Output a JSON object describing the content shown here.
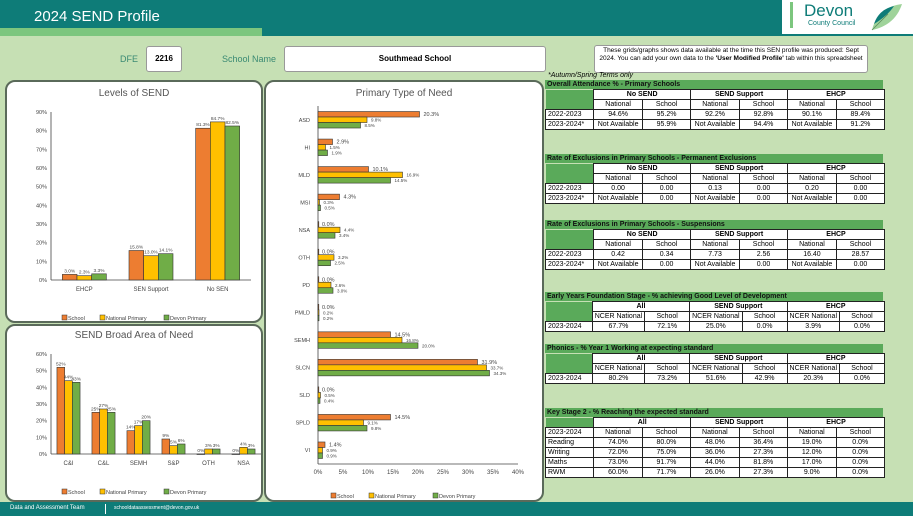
{
  "header": {
    "title": "2024 SEND Profile",
    "logo_main": "Devon",
    "logo_sub": "County Council"
  },
  "form": {
    "dfe_label": "DFE",
    "dfe_value": "2216",
    "school_label": "School Name",
    "school_value": "Southmead School",
    "note_part1": "These grids/graphs shows data available at the time this SEN profile was produced: Sept 2024.  You can add your own data to the ",
    "note_bold": "'User Modified Profile'",
    "note_part2": " tab within this spreadsheet",
    "autumn_note": "*Autumn/Spring Terms only"
  },
  "colors": {
    "school": "#ed7d31",
    "national": "#ffc000",
    "devon": "#70ad47"
  },
  "legend": [
    "School",
    "National Primary",
    "Devon Primary"
  ],
  "chart_data": [
    {
      "id": "levels",
      "type": "bar",
      "title": "Levels of SEND",
      "categories": [
        "EHCP",
        "SEN Support",
        "No SEN"
      ],
      "series": [
        {
          "name": "School",
          "values": [
            3.0,
            15.8,
            81.3
          ]
        },
        {
          "name": "National Primary",
          "values": [
            2.3,
            13.0,
            84.7
          ]
        },
        {
          "name": "Devon Primary",
          "values": [
            3.3,
            14.1,
            82.5
          ]
        }
      ],
      "labels": [
        [
          "3.0%",
          "15.8%",
          "81.3%"
        ],
        [
          "2.3%",
          "13.0%",
          "84.7%"
        ],
        [
          "3.3%",
          "14.1%",
          "82.5%"
        ]
      ],
      "ylim": [
        0,
        90
      ],
      "yticks": [
        "0%",
        "10%",
        "20%",
        "30%",
        "40%",
        "50%",
        "60%",
        "70%",
        "80%",
        "90%"
      ],
      "legend": "bottom"
    },
    {
      "id": "broad",
      "type": "bar",
      "title": "SEND Broad Area of Need",
      "categories": [
        "C&I",
        "C&L",
        "SEMH",
        "S&P",
        "OTH",
        "NSA"
      ],
      "series": [
        {
          "name": "School",
          "values": [
            52,
            25,
            14,
            9,
            0,
            0
          ]
        },
        {
          "name": "National Primary",
          "values": [
            44,
            27,
            17,
            5,
            3,
            4
          ]
        },
        {
          "name": "Devon Primary",
          "values": [
            43,
            25,
            20,
            6,
            3,
            3
          ]
        }
      ],
      "labels": [
        [
          "52%",
          "25%",
          "14%",
          "9%",
          "0%",
          "0%"
        ],
        [
          "44%",
          "27%",
          "17%",
          "5%",
          "3%",
          "4%"
        ],
        [
          "43%",
          "25%",
          "20%",
          "6%",
          "3%",
          "3%"
        ]
      ],
      "ylim": [
        0,
        60
      ],
      "yticks": [
        "0%",
        "10%",
        "20%",
        "30%",
        "40%",
        "50%",
        "60%"
      ],
      "legend": "bottom"
    },
    {
      "id": "ptype",
      "type": "bar",
      "orientation": "horizontal",
      "title": "Primary Type of Need",
      "categories": [
        "ASD",
        "HI",
        "MLD",
        "MSI",
        "NSA",
        "OTH",
        "PD",
        "PMLD",
        "SEMH",
        "SLCN",
        "SLD",
        "SPLD",
        "VI"
      ],
      "series": [
        {
          "name": "School",
          "values": [
            20.3,
            2.9,
            10.1,
            4.3,
            0.0,
            0.0,
            0.0,
            0.0,
            14.5,
            31.9,
            0.0,
            14.5,
            1.4
          ]
        },
        {
          "name": "National Primary",
          "values": [
            9.8,
            1.5,
            16.9,
            0.3,
            4.4,
            3.2,
            2.6,
            0.2,
            16.8,
            33.7,
            0.5,
            9.1,
            0.9
          ]
        },
        {
          "name": "Devon Primary",
          "values": [
            8.5,
            1.9,
            14.5,
            0.5,
            3.4,
            2.5,
            3.0,
            0.2,
            20.0,
            34.3,
            0.4,
            9.8,
            0.9
          ]
        }
      ],
      "xlim": [
        0,
        40
      ],
      "xticks": [
        "0%",
        "5%",
        "10%",
        "15%",
        "20%",
        "25%",
        "30%",
        "35%",
        "40%"
      ],
      "legend": "bottom"
    }
  ],
  "tables": {
    "attendance": {
      "title": "Overall Attendance % - Primary Schools",
      "groups": [
        "No SEND",
        "SEND Support",
        "EHCP"
      ],
      "subheaders": [
        "National",
        "School",
        "National",
        "School",
        "National",
        "School"
      ],
      "rows": [
        {
          "label": "2022-2023",
          "values": [
            "94.6%",
            "95.2%",
            "92.2%",
            "92.8%",
            "90.1%",
            "89.4%"
          ]
        },
        {
          "label": "2023-2024*",
          "values": [
            "Not Available",
            "95.9%",
            "Not Available",
            "94.4%",
            "Not Available",
            "91.2%"
          ]
        }
      ]
    },
    "perm_exclusions": {
      "title": "Rate of Exclusions in Primary Schools - Permanent Exclusions",
      "groups": [
        "No SEND",
        "SEND Support",
        "EHCP"
      ],
      "subheaders": [
        "National",
        "School",
        "National",
        "School",
        "National",
        "School"
      ],
      "rows": [
        {
          "label": "2022-2023",
          "values": [
            "0.00",
            "0.00",
            "0.13",
            "0.00",
            "0.20",
            "0.00"
          ]
        },
        {
          "label": "2023-2024*",
          "values": [
            "Not Available",
            "0.00",
            "Not Available",
            "0.00",
            "Not Available",
            "0.00"
          ]
        }
      ]
    },
    "suspensions": {
      "title": "Rate of Exclusions in Primary Schools - Suspensions",
      "groups": [
        "No SEND",
        "SEND Support",
        "EHCP"
      ],
      "subheaders": [
        "National",
        "School",
        "National",
        "School",
        "National",
        "School"
      ],
      "rows": [
        {
          "label": "2022-2023",
          "values": [
            "0.42",
            "0.34",
            "7.73",
            "2.56",
            "16.40",
            "28.57"
          ]
        },
        {
          "label": "2023-2024*",
          "values": [
            "Not Available",
            "0.00",
            "Not Available",
            "0.00",
            "Not Available",
            "0.00"
          ]
        }
      ]
    },
    "eyfs": {
      "title": "Early Years Foundation Stage - % achieving Good Level of Development",
      "groups": [
        "All",
        "SEND Support",
        "EHCP"
      ],
      "subheaders": [
        "NCER National",
        "School",
        "NCER National",
        "School",
        "NCER National",
        "School"
      ],
      "rows": [
        {
          "label": "2023-2024",
          "values": [
            "67.7%",
            "72.1%",
            "25.0%",
            "0.0%",
            "3.9%",
            "0.0%"
          ]
        }
      ]
    },
    "phonics": {
      "title": "Phonics - % Year 1 Working at expecting standard",
      "groups": [
        "All",
        "SEND Support",
        "EHCP"
      ],
      "subheaders": [
        "NCER National",
        "School",
        "NCER National",
        "School",
        "NCER National",
        "School"
      ],
      "rows": [
        {
          "label": "2023-2024",
          "values": [
            "80.2%",
            "73.2%",
            "51.6%",
            "42.9%",
            "20.3%",
            "0.0%"
          ]
        }
      ]
    },
    "ks2": {
      "title": "Key Stage 2 - % Reaching the expected standard",
      "groups": [
        "All",
        "SEND Support",
        "EHCP"
      ],
      "year": "2023-2024",
      "subheaders": [
        "National",
        "School",
        "National",
        "School",
        "National",
        "School"
      ],
      "rows": [
        {
          "label": "Reading",
          "values": [
            "74.0%",
            "80.0%",
            "48.0%",
            "36.4%",
            "19.0%",
            "0.0%"
          ]
        },
        {
          "label": "Writing",
          "values": [
            "72.0%",
            "75.0%",
            "36.0%",
            "27.3%",
            "12.0%",
            "0.0%"
          ]
        },
        {
          "label": "Maths",
          "values": [
            "73.0%",
            "91.7%",
            "44.0%",
            "81.8%",
            "17.0%",
            "0.0%"
          ]
        },
        {
          "label": "RWM",
          "values": [
            "60.0%",
            "71.7%",
            "26.0%",
            "27.3%",
            "9.0%",
            "0.0%"
          ]
        }
      ]
    }
  },
  "footer": {
    "team": "Data and Assessment Team",
    "email": "schooldataassessment@devon.gov.uk"
  }
}
